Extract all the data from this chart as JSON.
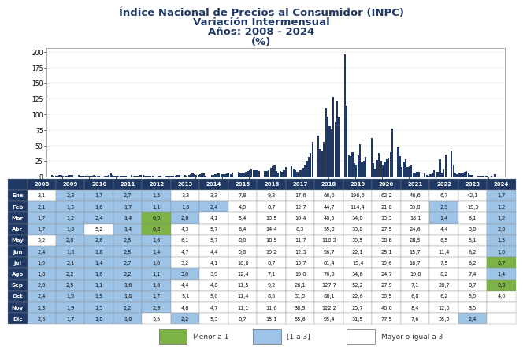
{
  "title_lines": [
    "Índice Nacional de Precios al Consumidor (INPC)",
    "Variación Intermensual",
    "Años: 2008 - 2024",
    "(%)"
  ],
  "years": [
    2008,
    2009,
    2010,
    2011,
    2012,
    2013,
    2014,
    2015,
    2016,
    2017,
    2018,
    2019,
    2020,
    2021,
    2022,
    2023,
    2024
  ],
  "months": [
    "Ene",
    "Feb",
    "Mar",
    "Abr",
    "May",
    "Jun",
    "Jul",
    "Ago",
    "Sep",
    "Oct",
    "Nov",
    "Dic"
  ],
  "table_data": [
    [
      3.1,
      2.3,
      1.7,
      2.7,
      1.5,
      3.3,
      3.3,
      7.8,
      9.3,
      17.6,
      66.0,
      196.6,
      62.2,
      46.6,
      6.7,
      42.1,
      1.7
    ],
    [
      2.1,
      1.3,
      1.6,
      1.7,
      1.1,
      1.6,
      2.4,
      4.9,
      8.7,
      12.7,
      44.7,
      114.4,
      21.8,
      33.8,
      2.9,
      19.3,
      1.2
    ],
    [
      1.7,
      1.2,
      2.4,
      1.4,
      0.9,
      2.8,
      4.1,
      5.4,
      10.5,
      10.4,
      40.9,
      34.8,
      13.3,
      16.1,
      1.4,
      6.1,
      1.2
    ],
    [
      1.7,
      1.8,
      5.2,
      1.4,
      0.8,
      4.3,
      5.7,
      6.4,
      14.4,
      8.3,
      55.8,
      33.8,
      27.5,
      24.6,
      4.4,
      3.8,
      2.0
    ],
    [
      3.2,
      2.0,
      2.6,
      2.5,
      1.6,
      6.1,
      5.7,
      8.0,
      18.5,
      11.7,
      110.3,
      39.5,
      38.6,
      28.5,
      6.5,
      5.1,
      1.5
    ],
    [
      2.4,
      1.8,
      1.8,
      2.5,
      1.4,
      4.7,
      4.4,
      9.8,
      19.2,
      12.3,
      96.7,
      22.1,
      25.1,
      15.7,
      11.4,
      6.2,
      1.0
    ],
    [
      1.9,
      2.1,
      1.4,
      2.7,
      1.0,
      3.2,
      4.1,
      10.8,
      8.7,
      13.7,
      81.4,
      19.4,
      19.6,
      16.7,
      7.5,
      6.2,
      0.7
    ],
    [
      1.8,
      2.2,
      1.6,
      2.2,
      1.1,
      3.0,
      3.9,
      12.4,
      7.1,
      19.0,
      76.0,
      34.6,
      24.7,
      19.8,
      8.2,
      7.4,
      1.4
    ],
    [
      2.0,
      2.5,
      1.1,
      1.6,
      1.6,
      4.4,
      4.8,
      11.5,
      9.2,
      26.1,
      127.7,
      52.2,
      27.9,
      7.1,
      28.7,
      8.7,
      0.8
    ],
    [
      2.4,
      1.9,
      1.5,
      1.8,
      1.7,
      5.1,
      5.0,
      11.4,
      8.0,
      31.9,
      88.1,
      22.6,
      30.5,
      6.8,
      6.2,
      5.9,
      4.0
    ],
    [
      2.3,
      1.9,
      1.5,
      2.2,
      2.3,
      4.8,
      4.7,
      11.1,
      11.6,
      38.3,
      122.2,
      25.7,
      40.0,
      8.4,
      12.6,
      3.5,
      null
    ],
    [
      2.6,
      1.7,
      1.8,
      1.8,
      3.5,
      2.2,
      5.3,
      8.7,
      15.1,
      55.6,
      95.4,
      31.5,
      77.5,
      7.6,
      35.3,
      2.4,
      null
    ]
  ],
  "bar_color": "#1f3864",
  "title_color": "#1f3864",
  "table_header_bg": "#1f3864",
  "table_header_fg": "#ffffff",
  "color_menor1": "#7db346",
  "color_1a3": "#9dc3e6",
  "color_mayor3": "#ffffff",
  "legend_menor1": "Menor a 1",
  "legend_1a3": "[1 a 3]",
  "legend_mayor3": "Mayor o igual a 3",
  "chart_bg": "#ffffff",
  "outer_bg": "#ffffff",
  "chart_border_color": "#aaaaaa"
}
